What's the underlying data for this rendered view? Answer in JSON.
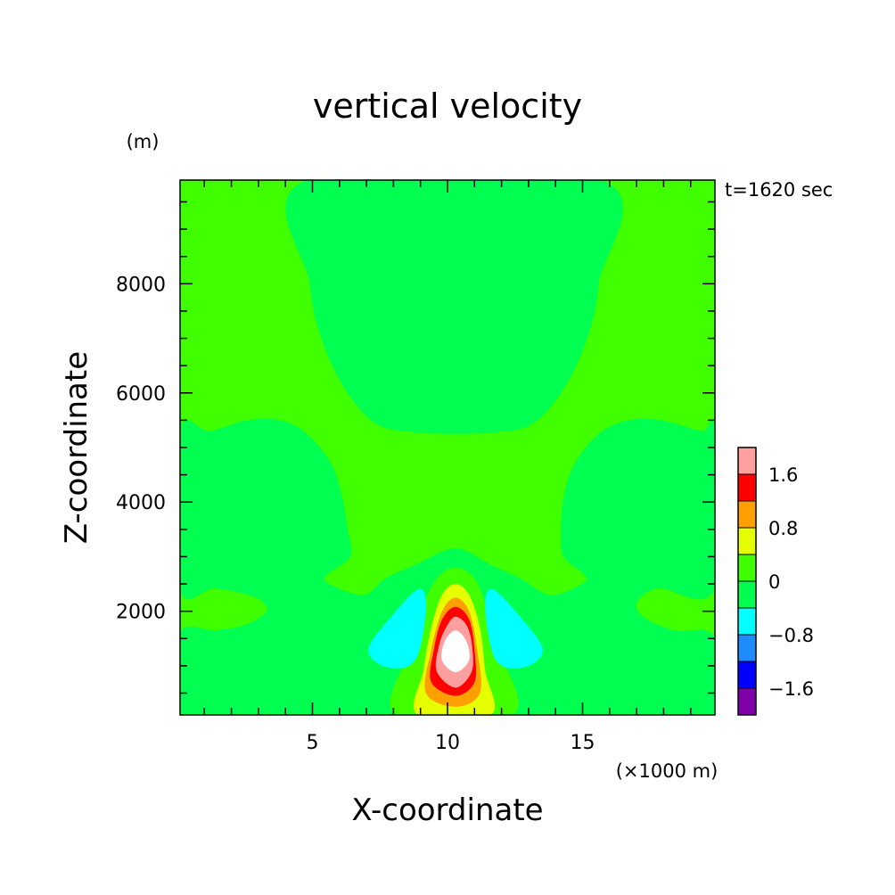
{
  "chart_data": {
    "type": "heatmap",
    "title": "vertical velocity",
    "xlabel": "X-coordinate",
    "ylabel": "Z-coordinate",
    "x_unit": "(×1000 m)",
    "y_unit": "(m)",
    "annotation": "t=1620 sec",
    "xlim": [
      0.1,
      19.9
    ],
    "ylim": [
      100,
      9900
    ],
    "x_ticks": [
      {
        "value": 5,
        "label": "5"
      },
      {
        "value": 10,
        "label": "10"
      },
      {
        "value": 15,
        "label": "15"
      }
    ],
    "y_ticks": [
      {
        "value": 2000,
        "label": "2000"
      },
      {
        "value": 4000,
        "label": "4000"
      },
      {
        "value": 6000,
        "label": "6000"
      },
      {
        "value": 8000,
        "label": "8000"
      }
    ],
    "grid": false,
    "legend": "colorbar-right",
    "colorbar": {
      "levels": [
        -2.0,
        -1.6,
        -1.2,
        -0.8,
        -0.4,
        0,
        0.4,
        0.8,
        1.2,
        1.6,
        2.0
      ],
      "colors": [
        "#7f00a8",
        "#0000ff",
        "#1e8cff",
        "#00ffff",
        "#00ff50",
        "#40ff00",
        "#e6ff00",
        "#ff9f00",
        "#ff0000",
        "#ff9f9f"
      ],
      "tick_labels": [
        {
          "value": -1.6,
          "label": "−1.6"
        },
        {
          "value": -0.8,
          "label": "−0.8"
        },
        {
          "value": 0,
          "label": "0"
        },
        {
          "value": 0.8,
          "label": "0.8"
        },
        {
          "value": 1.6,
          "label": "1.6"
        }
      ]
    },
    "background_value_color": "#40ff00",
    "regions": [
      {
        "name": "upper-downdraft",
        "range": [
          -0.4,
          0
        ],
        "color": "#00ff50",
        "outline": [
          [
            4.8,
            9900
          ],
          [
            4.9,
            8000
          ],
          [
            5.4,
            6900
          ],
          [
            6.3,
            6000
          ],
          [
            7.4,
            5420
          ],
          [
            8.8,
            5280
          ],
          [
            10.3,
            5250
          ],
          [
            11.8,
            5280
          ],
          [
            13.1,
            5420
          ],
          [
            14.2,
            6000
          ],
          [
            15.1,
            6900
          ],
          [
            15.6,
            8000
          ],
          [
            15.7,
            9900
          ]
        ]
      },
      {
        "name": "mid-downdraft",
        "range": [
          -0.4,
          0
        ],
        "color": "#00ff50",
        "outline": [
          [
            0.1,
            5300
          ],
          [
            1.2,
            5300
          ],
          [
            2.6,
            5500
          ],
          [
            3.8,
            5500
          ],
          [
            4.8,
            5250
          ],
          [
            5.7,
            4700
          ],
          [
            6.1,
            4100
          ],
          [
            6.3,
            3500
          ],
          [
            6.4,
            3000
          ],
          [
            5.5,
            2650
          ],
          [
            5.7,
            2480
          ],
          [
            6.9,
            2300
          ],
          [
            7.7,
            2600
          ],
          [
            8.8,
            2850
          ],
          [
            10.3,
            3150
          ],
          [
            11.6,
            2850
          ],
          [
            12.7,
            2600
          ],
          [
            13.8,
            2300
          ],
          [
            14.9,
            2480
          ],
          [
            15.1,
            2650
          ],
          [
            14.3,
            3000
          ],
          [
            14.2,
            3500
          ],
          [
            14.3,
            4100
          ],
          [
            14.7,
            4700
          ],
          [
            15.6,
            5250
          ],
          [
            16.7,
            5500
          ],
          [
            17.9,
            5500
          ],
          [
            19.4,
            5300
          ],
          [
            19.9,
            5320
          ],
          [
            19.9,
            2420
          ],
          [
            17.8,
            2420
          ],
          [
            17.0,
            2150
          ],
          [
            17.3,
            1880
          ],
          [
            18.4,
            1650
          ],
          [
            19.9,
            1520
          ],
          [
            19.9,
            100
          ],
          [
            0.1,
            100
          ],
          [
            0.1,
            1600
          ],
          [
            1.4,
            1650
          ],
          [
            2.5,
            1750
          ],
          [
            3.3,
            2000
          ],
          [
            2.9,
            2250
          ],
          [
            1.4,
            2420
          ],
          [
            0.1,
            2420
          ]
        ]
      },
      {
        "name": "core-0.0",
        "range": [
          0,
          0.4
        ],
        "color": "#40ff00",
        "outline": [
          [
            8.1,
            100
          ],
          [
            8.5,
            1200
          ],
          [
            9.0,
            2000
          ],
          [
            9.6,
            2600
          ],
          [
            10.3,
            2800
          ],
          [
            11.0,
            2600
          ],
          [
            11.5,
            2000
          ],
          [
            12.0,
            1200
          ],
          [
            12.4,
            100
          ]
        ]
      },
      {
        "name": "core-0.4",
        "range": [
          0.4,
          0.8
        ],
        "color": "#e6ff00",
        "outline": [
          [
            8.9,
            100
          ],
          [
            9.1,
            900
          ],
          [
            9.4,
            1700
          ],
          [
            9.8,
            2300
          ],
          [
            10.3,
            2500
          ],
          [
            10.8,
            2300
          ],
          [
            11.2,
            1700
          ],
          [
            11.4,
            900
          ],
          [
            11.6,
            100
          ]
        ]
      },
      {
        "name": "core-0.8",
        "range": [
          0.8,
          1.2
        ],
        "color": "#ff9f00",
        "outline": [
          [
            9.2,
            500
          ],
          [
            9.4,
            1300
          ],
          [
            9.8,
            2000
          ],
          [
            10.3,
            2250
          ],
          [
            10.8,
            2000
          ],
          [
            11.1,
            1300
          ],
          [
            11.2,
            500
          ],
          [
            10.3,
            250
          ]
        ]
      },
      {
        "name": "core-1.2",
        "range": [
          1.2,
          1.6
        ],
        "color": "#ff0000",
        "outline": [
          [
            9.4,
            700
          ],
          [
            9.5,
            1300
          ],
          [
            9.8,
            1850
          ],
          [
            10.3,
            2080
          ],
          [
            10.8,
            1850
          ],
          [
            11.0,
            1300
          ],
          [
            11.0,
            700
          ],
          [
            10.3,
            450
          ]
        ]
      },
      {
        "name": "core-1.6",
        "range": [
          1.6,
          2.0
        ],
        "color": "#ff9f9f",
        "outline": [
          [
            9.6,
            900
          ],
          [
            9.7,
            1400
          ],
          [
            10.0,
            1750
          ],
          [
            10.3,
            1900
          ],
          [
            10.7,
            1750
          ],
          [
            10.9,
            1400
          ],
          [
            10.9,
            900
          ],
          [
            10.3,
            600
          ]
        ]
      },
      {
        "name": "core-max",
        "range": [
          2.0,
          2.4
        ],
        "color": "#ffffff",
        "outline": [
          [
            9.8,
            1100
          ],
          [
            9.9,
            1450
          ],
          [
            10.3,
            1650
          ],
          [
            10.7,
            1450
          ],
          [
            10.8,
            1100
          ],
          [
            10.3,
            880
          ]
        ]
      },
      {
        "name": "left-downdraft",
        "range": [
          -0.8,
          -0.4
        ],
        "color": "#00ffff",
        "outline": [
          [
            7.1,
            1350
          ],
          [
            8.0,
            1950
          ],
          [
            8.9,
            2400
          ],
          [
            9.2,
            2200
          ],
          [
            9.1,
            1600
          ],
          [
            8.8,
            1100
          ],
          [
            8.2,
            950
          ],
          [
            7.4,
            1050
          ]
        ]
      },
      {
        "name": "right-downdraft",
        "range": [
          -0.8,
          -0.4
        ],
        "color": "#00ffff",
        "outline": [
          [
            11.4,
            2200
          ],
          [
            11.7,
            2400
          ],
          [
            12.6,
            1950
          ],
          [
            13.5,
            1350
          ],
          [
            13.2,
            1050
          ],
          [
            12.4,
            950
          ],
          [
            11.8,
            1100
          ],
          [
            11.5,
            1600
          ]
        ]
      }
    ]
  }
}
